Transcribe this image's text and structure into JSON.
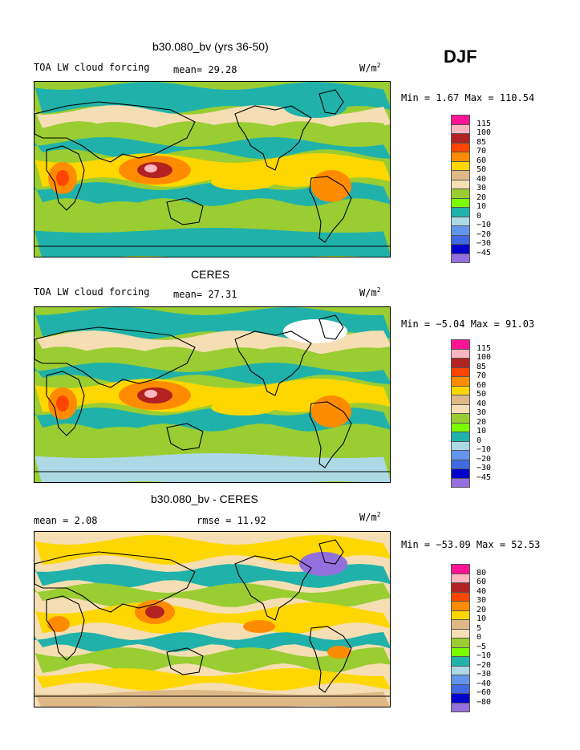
{
  "season": "DJF",
  "unit_main": "W/m",
  "unit_sup": "2",
  "colors": [
    "#ff1493",
    "#ffb6c1",
    "#b22222",
    "#ff4500",
    "#ff8c00",
    "#ffd700",
    "#deb887",
    "#f5deb3",
    "#9acd32",
    "#7cfc00",
    "#20b2aa",
    "#add8e6",
    "#6495ed",
    "#4169e1",
    "#0000cd",
    "#9370db"
  ],
  "panels": [
    {
      "title": "b30.080_bv (yrs 36-50)",
      "subtitle": "TOA LW cloud forcing",
      "stat1": "mean=  29.28",
      "stat2": "",
      "minmax": "Min =   1.67 Max = 110.54",
      "levels": [
        "115",
        "100",
        "85",
        "70",
        "60",
        "50",
        "40",
        "30",
        "20",
        "10",
        "0",
        "−10",
        "−20",
        "−30",
        "−45"
      ]
    },
    {
      "title": "CERES",
      "subtitle": "TOA LW cloud forcing",
      "stat1": "mean=  27.31",
      "stat2": "",
      "minmax": "Min =  −5.04 Max =  91.03",
      "levels": [
        "115",
        "100",
        "85",
        "70",
        "60",
        "50",
        "40",
        "30",
        "20",
        "10",
        "0",
        "−10",
        "−20",
        "−30",
        "−45"
      ]
    },
    {
      "title": "b30.080_bv - CERES",
      "subtitle": "mean =   2.08",
      "stat1": "",
      "stat2": "rmse =  11.92",
      "minmax": "Min = −53.09 Max =  52.53",
      "levels": [
        "80",
        "60",
        "40",
        "30",
        "20",
        "10",
        "5",
        "0",
        "−5",
        "−10",
        "−20",
        "−30",
        "−40",
        "−60",
        "−80"
      ]
    }
  ]
}
